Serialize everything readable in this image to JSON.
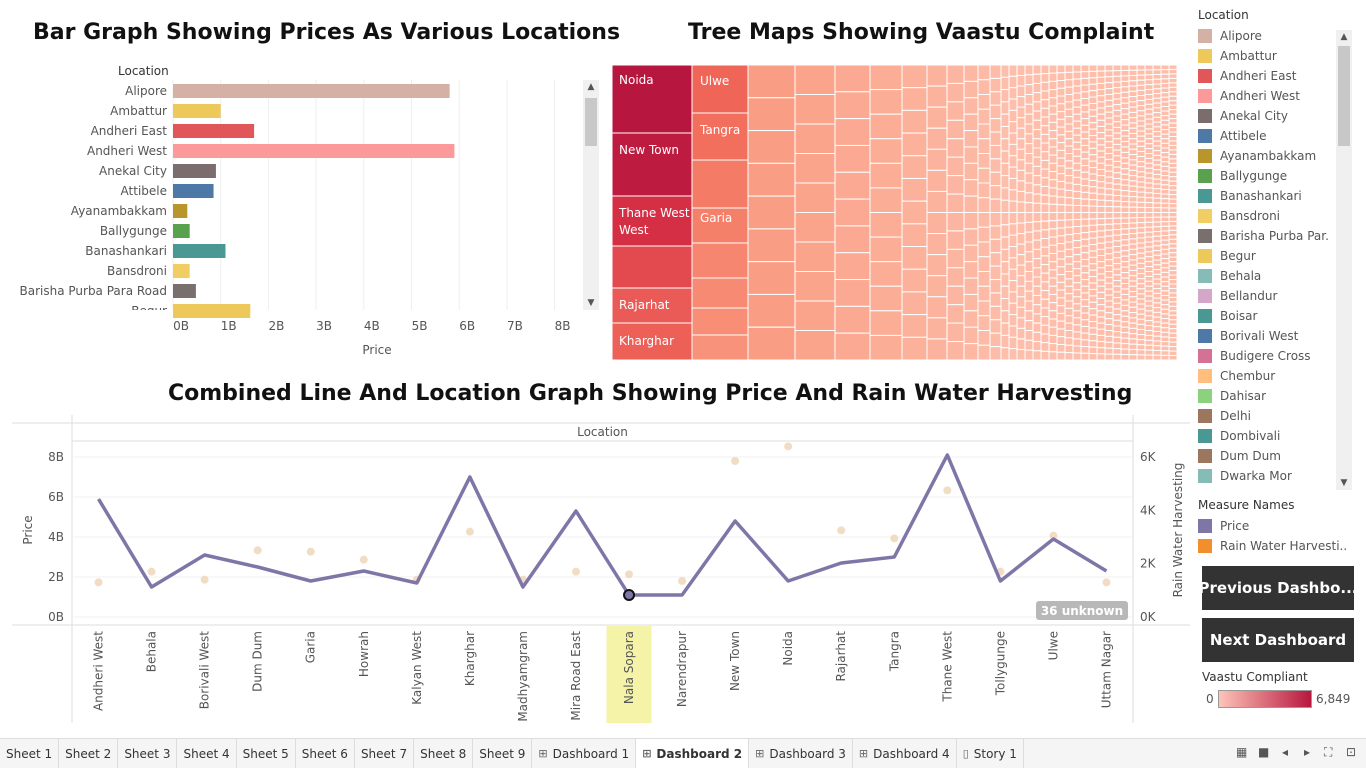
{
  "titles": {
    "bar": "Bar Graph Showing Prices As Various Locations",
    "tree": "Tree Maps Showing Vaastu Complaint",
    "line": "Combined Line And Location Graph Showing Price And Rain Water Harvesting"
  },
  "chart_data": [
    {
      "type": "bar",
      "title": "Bar Graph Showing Prices As Various Locations",
      "xlabel": "Price",
      "ylabel": "Location",
      "xlim": [
        0,
        8
      ],
      "x_ticks": [
        "0B",
        "1B",
        "2B",
        "3B",
        "4B",
        "5B",
        "6B",
        "7B",
        "8B"
      ],
      "categories": [
        "Alipore",
        "Ambattur",
        "Andheri East",
        "Andheri West",
        "Anekal City",
        "Attibele",
        "Ayanambakkam",
        "Ballygunge",
        "Banashankari",
        "Bansdroni",
        "Barisha Purba Para Road",
        "Begur"
      ],
      "values": [
        5.8,
        1.0,
        1.7,
        5.9,
        0.9,
        0.85,
        0.3,
        0.35,
        1.1,
        0.35,
        0.48,
        1.62
      ],
      "colors": [
        "#d5b0a4",
        "#edc95c",
        "#e15659",
        "#fb9a99",
        "#7b6d6e",
        "#4e79a7",
        "#b8962c",
        "#59a14f",
        "#499894",
        "#f1ce63",
        "#79706e",
        "#edc95c"
      ]
    },
    {
      "type": "treemap",
      "title": "Tree Maps Showing Vaastu Complaint",
      "labels": [
        "Noida",
        "New Town",
        "Thane West",
        "Rajarhat",
        "Kharghar",
        "Ulwe",
        "Tangra",
        "Garia"
      ]
    },
    {
      "type": "line",
      "title": "Combined Line And Location Graph Showing Price And Rain Water Harvesting",
      "xlabel": "Location",
      "ylabel": "Price",
      "y2label": "Rain Water Harvesting",
      "categories": [
        "Andheri West",
        "Behala",
        "Borivali West",
        "Dum Dum",
        "Garia",
        "Howrah",
        "Kalyan West",
        "Kharghar",
        "Madhyamgram",
        "Mira Road East",
        "Nala Sopara",
        "Narendrapur",
        "New Town",
        "Noida",
        "Rajarhat",
        "Tangra",
        "Thane West",
        "Tollygunge",
        "Ulwe",
        "Uttam Nagar"
      ],
      "highlighted_category": "Nala Sopara",
      "ylim": [
        0,
        8.8
      ],
      "y_ticks": [
        "0B",
        "2B",
        "4B",
        "6B",
        "8B"
      ],
      "y2lim": [
        0,
        6600
      ],
      "y2_ticks": [
        "0K",
        "2K",
        "4K",
        "6K"
      ],
      "series": [
        {
          "name": "Price",
          "color": "#7f76a8",
          "values": [
            5.9,
            1.5,
            3.1,
            2.5,
            1.8,
            2.3,
            1.7,
            7.0,
            1.5,
            5.3,
            1.1,
            1.1,
            4.8,
            1.8,
            2.7,
            3.0,
            8.1,
            1.8,
            3.9,
            2.3
          ]
        },
        {
          "name": "Rain Water Harvesting",
          "color": "#f0d9bc",
          "values": [
            1300,
            1700,
            1400,
            2500,
            2450,
            2150,
            1400,
            3200,
            1400,
            1700,
            1600,
            1350,
            5850,
            6400,
            3250,
            2950,
            4750,
            1700,
            3050,
            1300
          ]
        }
      ],
      "annotation": "36 unknown"
    }
  ],
  "legend": {
    "location_title": "Location",
    "locations": [
      {
        "label": "Alipore",
        "color": "#d5b0a4"
      },
      {
        "label": "Ambattur",
        "color": "#edc95c"
      },
      {
        "label": "Andheri East",
        "color": "#e15659"
      },
      {
        "label": "Andheri West",
        "color": "#fb9a99"
      },
      {
        "label": "Anekal City",
        "color": "#7b6d6e"
      },
      {
        "label": "Attibele",
        "color": "#4e79a7"
      },
      {
        "label": "Ayanambakkam",
        "color": "#b8962c"
      },
      {
        "label": "Ballygunge",
        "color": "#59a14f"
      },
      {
        "label": "Banashankari",
        "color": "#499894"
      },
      {
        "label": "Bansdroni",
        "color": "#f1ce63"
      },
      {
        "label": "Barisha Purba Par..",
        "color": "#79706e"
      },
      {
        "label": "Begur",
        "color": "#edc95c"
      },
      {
        "label": "Behala",
        "color": "#86bcb6"
      },
      {
        "label": "Bellandur",
        "color": "#d4a6c8"
      },
      {
        "label": "Boisar",
        "color": "#499894"
      },
      {
        "label": "Borivali West",
        "color": "#4e79a7"
      },
      {
        "label": "Budigere Cross",
        "color": "#d37295"
      },
      {
        "label": "Chembur",
        "color": "#ffbe7d"
      },
      {
        "label": "Dahisar",
        "color": "#8cd17d"
      },
      {
        "label": "Delhi",
        "color": "#9d7660"
      },
      {
        "label": "Dombivali",
        "color": "#499894"
      },
      {
        "label": "Dum Dum",
        "color": "#9d7660"
      },
      {
        "label": "Dwarka Mor",
        "color": "#86bcb6"
      }
    ],
    "measure_title": "Measure Names",
    "measures": [
      {
        "label": "Price",
        "color": "#7f76a8"
      },
      {
        "label": "Rain Water Harvesti..",
        "color": "#f28e2b"
      }
    ],
    "vaastu_title": "Vaastu Compliant",
    "vaastu_min": "0",
    "vaastu_max": "6,849",
    "vaastu_color_low": "#fdc4b8",
    "vaastu_color_high": "#b7173e"
  },
  "buttons": {
    "previous": "Previous Dashbo...",
    "next": "Next Dashboard"
  },
  "tabs": [
    {
      "label": "Sheet 1",
      "type": "sheet"
    },
    {
      "label": "Sheet 2",
      "type": "sheet"
    },
    {
      "label": "Sheet 3",
      "type": "sheet"
    },
    {
      "label": "Sheet 4",
      "type": "sheet"
    },
    {
      "label": "Sheet 5",
      "type": "sheet"
    },
    {
      "label": "Sheet 6",
      "type": "sheet"
    },
    {
      "label": "Sheet 7",
      "type": "sheet"
    },
    {
      "label": "Sheet 8",
      "type": "sheet"
    },
    {
      "label": "Sheet 9",
      "type": "sheet"
    },
    {
      "label": "Dashboard 1",
      "type": "dashboard"
    },
    {
      "label": "Dashboard 2",
      "type": "dashboard",
      "active": true
    },
    {
      "label": "Dashboard 3",
      "type": "dashboard"
    },
    {
      "label": "Dashboard 4",
      "type": "dashboard"
    },
    {
      "label": "Story 1",
      "type": "story"
    }
  ]
}
